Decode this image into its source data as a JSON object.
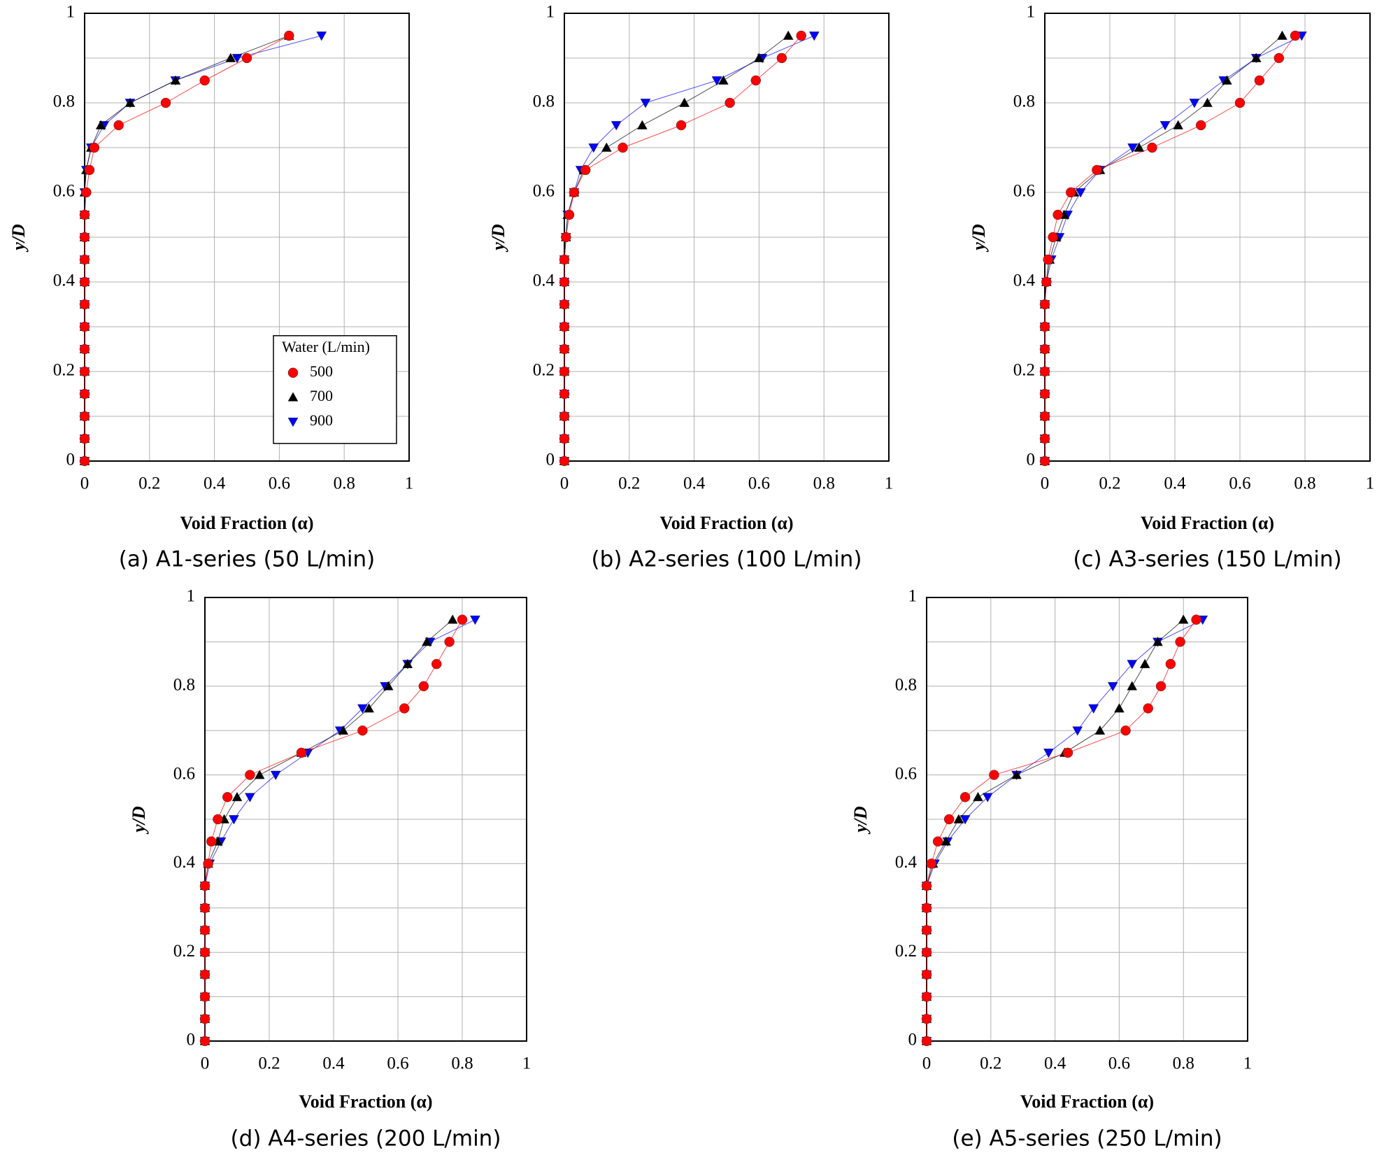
{
  "chart_data": [
    {
      "type": "line",
      "caption": "(a) A1-series (50 L/min)",
      "x_label": "Void Fraction (α)",
      "y_label": "y/D",
      "xlim": [
        0,
        1
      ],
      "ylim": [
        0,
        1
      ],
      "xticks": [
        0,
        0.2,
        0.4,
        0.6,
        0.8,
        1
      ],
      "yticks": [
        0,
        0.2,
        0.4,
        0.6,
        0.8,
        1
      ],
      "minor_yticks": [
        0.1,
        0.3,
        0.5,
        0.7,
        0.9
      ],
      "grid": true,
      "legend_title": "Water (L/min)",
      "legend": "lower right",
      "y": [
        0,
        0.05,
        0.1,
        0.15,
        0.2,
        0.25,
        0.3,
        0.35,
        0.4,
        0.45,
        0.5,
        0.55,
        0.6,
        0.65,
        0.7,
        0.75,
        0.8,
        0.85,
        0.9,
        0.95
      ],
      "series": [
        {
          "name": "500",
          "color": "#ff0000",
          "marker": "circle",
          "x": [
            0,
            0,
            0,
            0,
            0,
            0,
            0,
            0,
            0,
            0,
            0,
            0,
            0.005,
            0.015,
            0.03,
            0.105,
            0.25,
            0.37,
            0.5,
            0.63
          ]
        },
        {
          "name": "700",
          "color": "#000000",
          "marker": "triangle-up",
          "x": [
            0,
            0,
            0,
            0,
            0,
            0,
            0,
            0,
            0,
            0,
            0,
            0,
            0,
            0.005,
            0.02,
            0.05,
            0.14,
            0.28,
            0.45,
            0.63
          ]
        },
        {
          "name": "900",
          "color": "#0000ff",
          "marker": "triangle-down",
          "x": [
            0,
            0,
            0,
            0,
            0,
            0,
            0,
            0,
            0,
            0,
            0,
            0,
            0,
            0.005,
            0.02,
            0.06,
            0.14,
            0.28,
            0.47,
            0.73
          ]
        }
      ]
    },
    {
      "type": "line",
      "caption": "(b) A2-series (100 L/min)",
      "x_label": "Void Fraction (α)",
      "y_label": "y/D",
      "xlim": [
        0,
        1
      ],
      "ylim": [
        0,
        1
      ],
      "xticks": [
        0,
        0.2,
        0.4,
        0.6,
        0.8,
        1
      ],
      "yticks": [
        0,
        0.2,
        0.4,
        0.6,
        0.8,
        1
      ],
      "minor_yticks": [
        0.1,
        0.3,
        0.5,
        0.7,
        0.9
      ],
      "grid": true,
      "y": [
        0,
        0.05,
        0.1,
        0.15,
        0.2,
        0.25,
        0.3,
        0.35,
        0.4,
        0.45,
        0.5,
        0.55,
        0.6,
        0.65,
        0.7,
        0.75,
        0.8,
        0.85,
        0.9,
        0.95
      ],
      "series": [
        {
          "color": "#ff0000",
          "marker": "circle",
          "x": [
            0,
            0,
            0,
            0,
            0,
            0,
            0,
            0,
            0,
            0,
            0.005,
            0.015,
            0.03,
            0.065,
            0.18,
            0.36,
            0.51,
            0.59,
            0.67,
            0.73
          ]
        },
        {
          "color": "#000000",
          "marker": "triangle-up",
          "x": [
            0,
            0,
            0,
            0,
            0,
            0,
            0,
            0,
            0,
            0,
            0.005,
            0.01,
            0.03,
            0.06,
            0.13,
            0.24,
            0.37,
            0.49,
            0.6,
            0.69
          ]
        },
        {
          "color": "#0000ff",
          "marker": "triangle-down",
          "x": [
            0,
            0,
            0,
            0,
            0,
            0,
            0,
            0,
            0,
            0,
            0.005,
            0.01,
            0.03,
            0.05,
            0.09,
            0.16,
            0.25,
            0.47,
            0.61,
            0.77
          ]
        }
      ]
    },
    {
      "type": "line",
      "caption": "(c) A3-series (150 L/min)",
      "x_label": "Void Fraction (α)",
      "y_label": "y/D",
      "xlim": [
        0,
        1
      ],
      "ylim": [
        0,
        1
      ],
      "xticks": [
        0,
        0.2,
        0.4,
        0.6,
        0.8,
        1
      ],
      "yticks": [
        0,
        0.2,
        0.4,
        0.6,
        0.8,
        1
      ],
      "minor_yticks": [
        0.1,
        0.3,
        0.5,
        0.7,
        0.9
      ],
      "grid": true,
      "y": [
        0,
        0.05,
        0.1,
        0.15,
        0.2,
        0.25,
        0.3,
        0.35,
        0.4,
        0.45,
        0.5,
        0.55,
        0.6,
        0.65,
        0.7,
        0.75,
        0.8,
        0.85,
        0.9,
        0.95
      ],
      "series": [
        {
          "color": "#ff0000",
          "marker": "circle",
          "x": [
            0,
            0,
            0,
            0,
            0,
            0,
            0,
            0,
            0.005,
            0.01,
            0.025,
            0.04,
            0.08,
            0.16,
            0.33,
            0.48,
            0.6,
            0.66,
            0.72,
            0.77
          ]
        },
        {
          "color": "#000000",
          "marker": "triangle-up",
          "x": [
            0,
            0,
            0,
            0,
            0,
            0,
            0,
            0,
            0.005,
            0.015,
            0.035,
            0.06,
            0.09,
            0.17,
            0.29,
            0.41,
            0.5,
            0.56,
            0.65,
            0.73
          ]
        },
        {
          "color": "#0000ff",
          "marker": "triangle-down",
          "x": [
            0,
            0,
            0,
            0,
            0,
            0,
            0,
            0,
            0.005,
            0.02,
            0.045,
            0.07,
            0.11,
            0.17,
            0.27,
            0.37,
            0.46,
            0.55,
            0.65,
            0.79
          ]
        }
      ]
    },
    {
      "type": "line",
      "caption": "(d) A4-series (200 L/min)",
      "x_label": "Void Fraction (α)",
      "y_label": "y/D",
      "xlim": [
        0,
        1
      ],
      "ylim": [
        0,
        1
      ],
      "xticks": [
        0,
        0.2,
        0.4,
        0.6,
        0.8,
        1
      ],
      "yticks": [
        0,
        0.2,
        0.4,
        0.6,
        0.8,
        1
      ],
      "minor_yticks": [
        0.1,
        0.3,
        0.5,
        0.7,
        0.9
      ],
      "grid": true,
      "y": [
        0,
        0.05,
        0.1,
        0.15,
        0.2,
        0.25,
        0.3,
        0.35,
        0.4,
        0.45,
        0.5,
        0.55,
        0.6,
        0.65,
        0.7,
        0.75,
        0.8,
        0.85,
        0.9,
        0.95
      ],
      "series": [
        {
          "color": "#ff0000",
          "marker": "circle",
          "x": [
            0,
            0,
            0,
            0,
            0,
            0,
            0,
            0,
            0.01,
            0.02,
            0.04,
            0.07,
            0.14,
            0.3,
            0.49,
            0.62,
            0.68,
            0.72,
            0.76,
            0.8
          ]
        },
        {
          "color": "#000000",
          "marker": "triangle-up",
          "x": [
            0,
            0,
            0,
            0,
            0,
            0,
            0,
            0,
            0.01,
            0.04,
            0.06,
            0.1,
            0.17,
            0.3,
            0.43,
            0.51,
            0.57,
            0.63,
            0.69,
            0.77
          ]
        },
        {
          "color": "#0000ff",
          "marker": "triangle-down",
          "x": [
            0,
            0,
            0,
            0,
            0,
            0,
            0,
            0,
            0.015,
            0.05,
            0.09,
            0.14,
            0.22,
            0.32,
            0.42,
            0.49,
            0.56,
            0.63,
            0.7,
            0.84
          ]
        }
      ]
    },
    {
      "type": "line",
      "caption": "(e) A5-series (250 L/min)",
      "x_label": "Void Fraction (α)",
      "y_label": "y/D",
      "xlim": [
        0,
        1
      ],
      "ylim": [
        0,
        1
      ],
      "xticks": [
        0,
        0.2,
        0.4,
        0.6,
        0.8,
        1
      ],
      "yticks": [
        0,
        0.2,
        0.4,
        0.6,
        0.8,
        1
      ],
      "minor_yticks": [
        0.1,
        0.3,
        0.5,
        0.7,
        0.9
      ],
      "grid": true,
      "y": [
        0,
        0.05,
        0.1,
        0.15,
        0.2,
        0.25,
        0.3,
        0.35,
        0.4,
        0.45,
        0.5,
        0.55,
        0.6,
        0.65,
        0.7,
        0.75,
        0.8,
        0.85,
        0.9,
        0.95
      ],
      "series": [
        {
          "color": "#ff0000",
          "marker": "circle",
          "x": [
            0,
            0,
            0,
            0,
            0,
            0,
            0,
            0,
            0.015,
            0.035,
            0.07,
            0.12,
            0.21,
            0.44,
            0.62,
            0.69,
            0.73,
            0.76,
            0.79,
            0.84
          ]
        },
        {
          "color": "#000000",
          "marker": "triangle-up",
          "x": [
            0,
            0,
            0,
            0,
            0,
            0,
            0,
            0,
            0.02,
            0.06,
            0.1,
            0.16,
            0.28,
            0.43,
            0.54,
            0.6,
            0.64,
            0.68,
            0.72,
            0.8
          ]
        },
        {
          "color": "#0000ff",
          "marker": "triangle-down",
          "x": [
            0,
            0,
            0,
            0,
            0,
            0,
            0,
            0,
            0.025,
            0.065,
            0.12,
            0.19,
            0.28,
            0.38,
            0.47,
            0.52,
            0.58,
            0.64,
            0.72,
            0.86
          ]
        }
      ]
    }
  ]
}
